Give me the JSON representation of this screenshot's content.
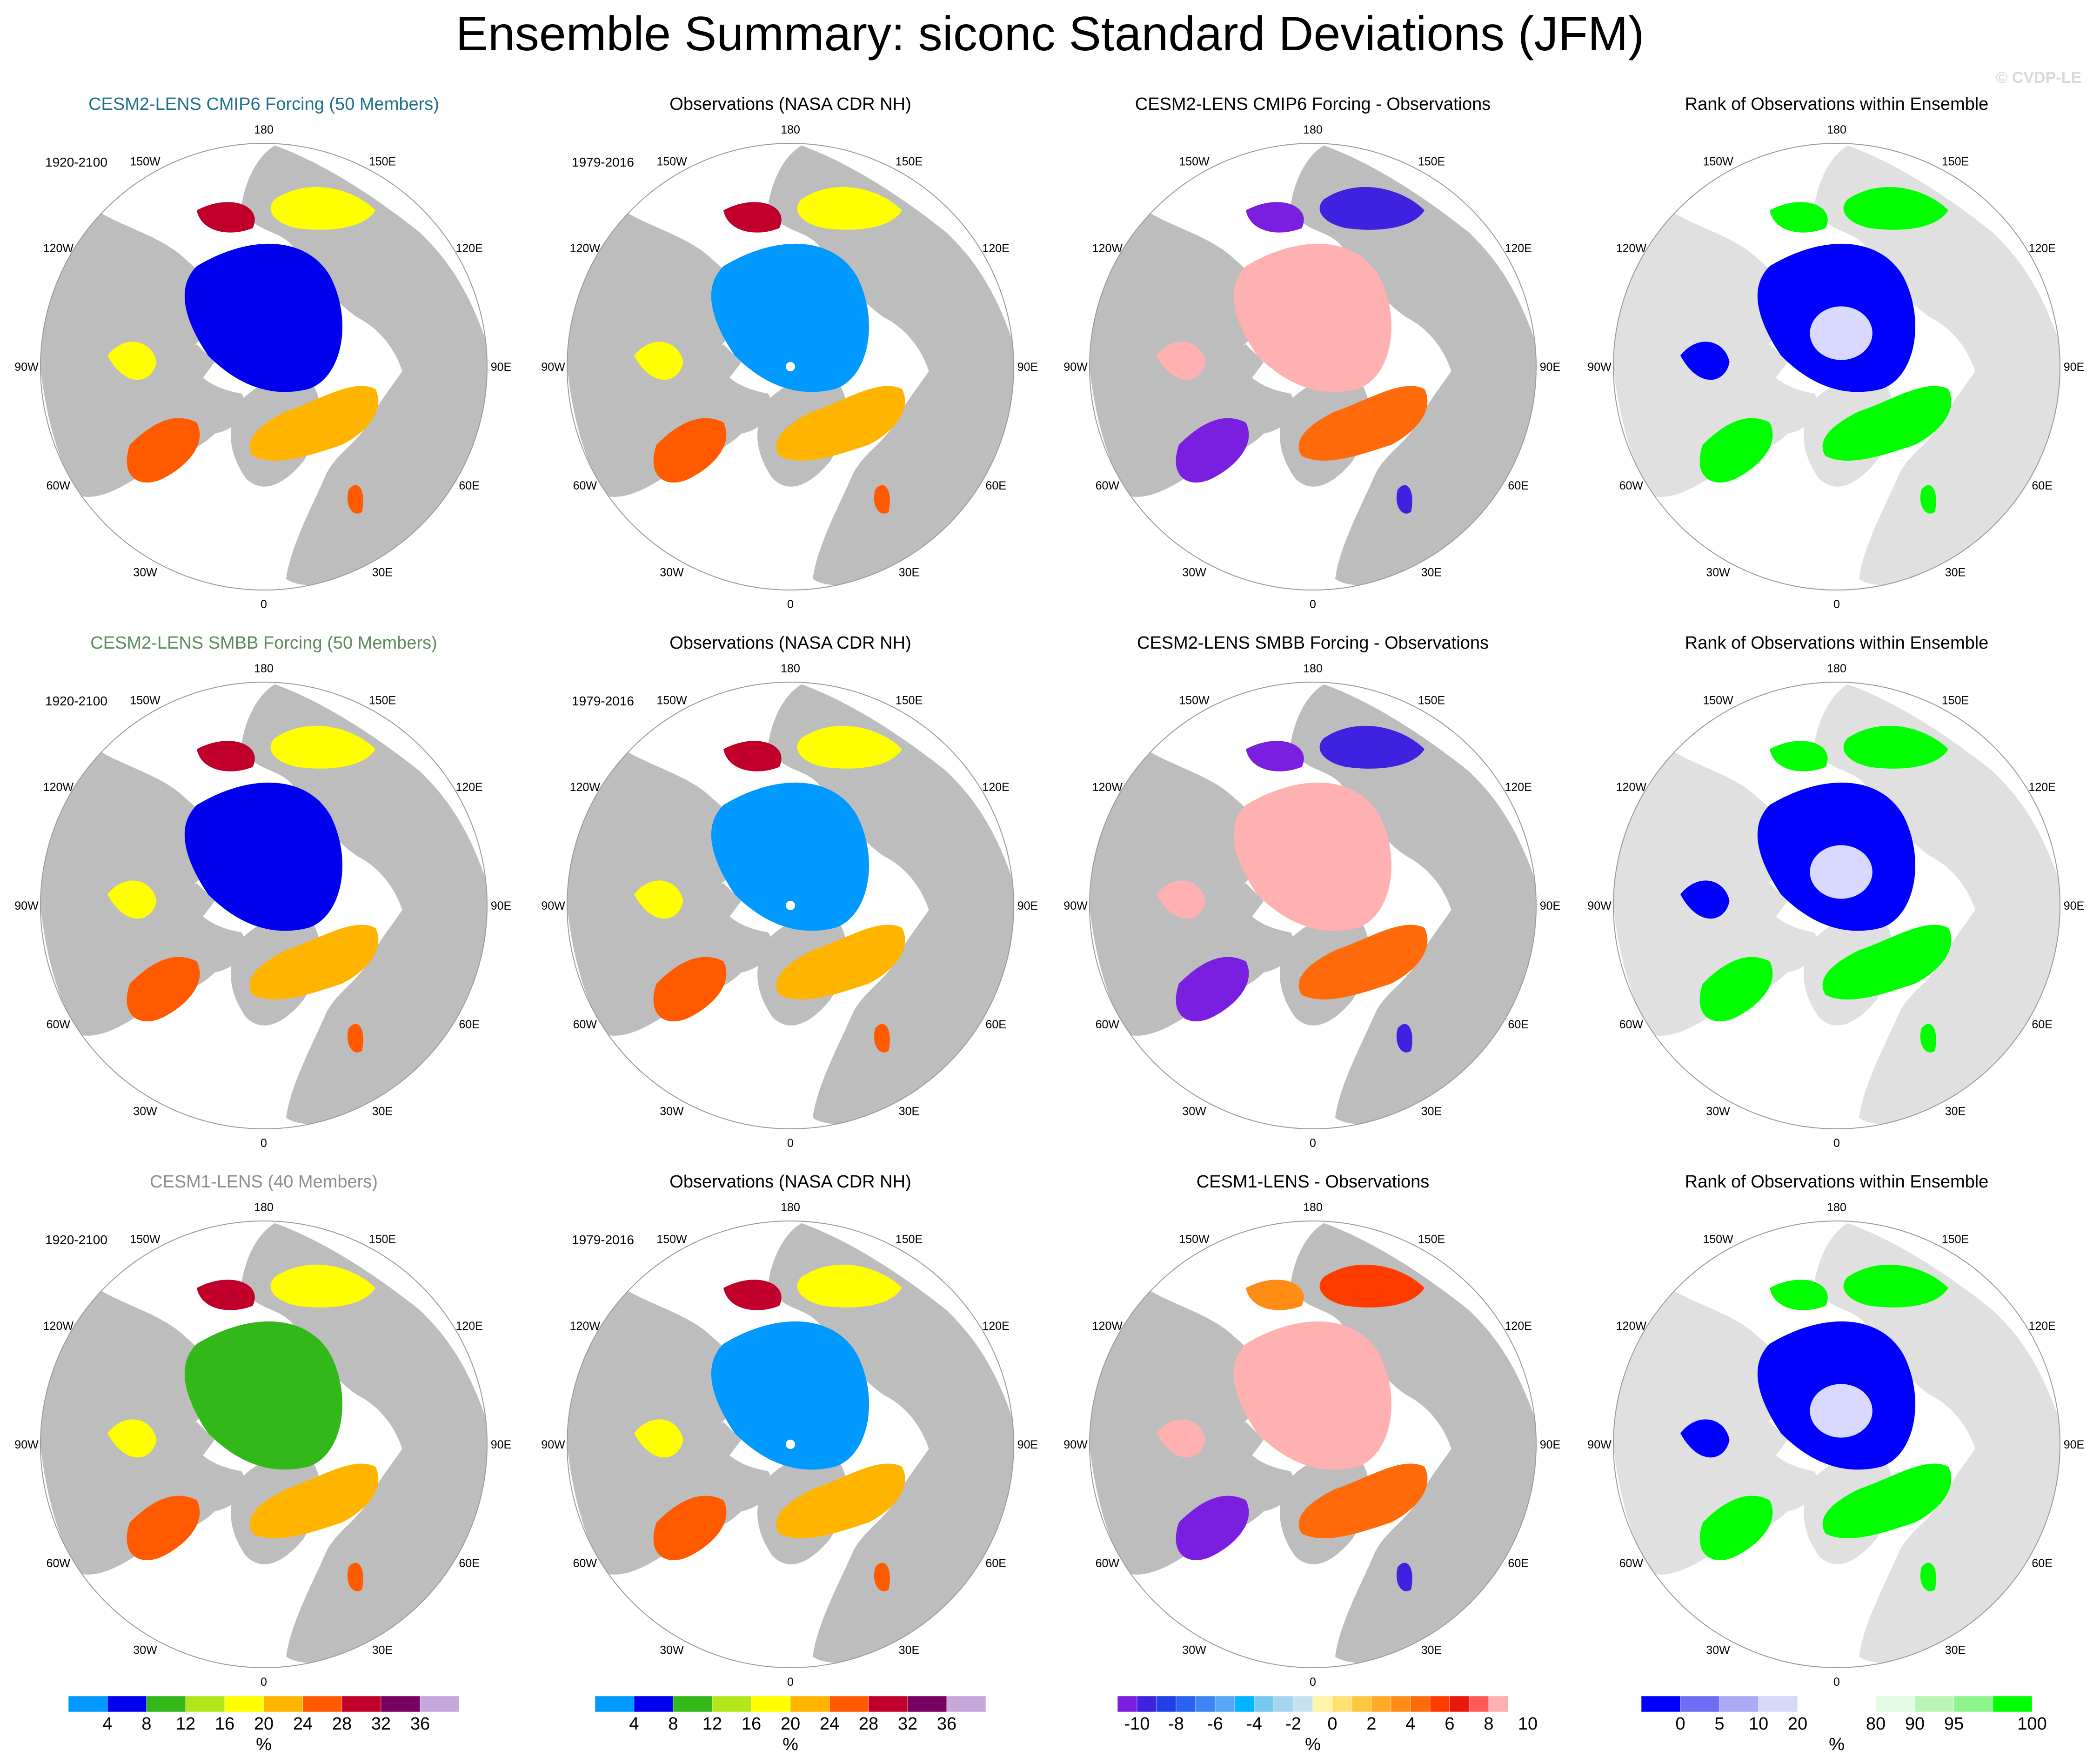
{
  "title": "Ensemble Summary: siconc Standard Deviations (JFM)",
  "watermark": "© CVDP-LE",
  "colors": {
    "ocean": "#ffffff",
    "land": "#bdbdbd",
    "land_light": "#e0e0e0",
    "title_cmip6": "#1f6f8b",
    "title_smbb": "#5b8a5b",
    "title_cesm1": "#8c8c8c",
    "black": "#000000"
  },
  "longitude_labels": [
    "180",
    "150E",
    "120E",
    "90E",
    "60E",
    "30E",
    "0",
    "30W",
    "60W",
    "90W",
    "120W",
    "150W"
  ],
  "chart_data": {
    "type": "heatmap",
    "variable": "siconc",
    "season": "JFM",
    "statistic": "Standard Deviations",
    "projection": "north-polar-stereographic",
    "rows": [
      {
        "panels": [
          {
            "title": "CESM2-LENS CMIP6 Forcing (50 Members)",
            "title_color": "#1f6f8b",
            "period": "1920-2100",
            "kind": "stddev",
            "variant": "cmip6"
          },
          {
            "title": "Observations (NASA CDR NH)",
            "title_color": "#000000",
            "period": "1979-2016",
            "kind": "obs",
            "variant": "obs"
          },
          {
            "title": "CESM2-LENS CMIP6 Forcing - Observations",
            "title_color": "#000000",
            "period": "",
            "kind": "diff",
            "variant": "cmip6"
          },
          {
            "title": "Rank of Observations within Ensemble",
            "title_color": "#000000",
            "period": "",
            "kind": "rank",
            "variant": "cmip6"
          }
        ]
      },
      {
        "panels": [
          {
            "title": "CESM2-LENS SMBB Forcing (50 Members)",
            "title_color": "#5b8a5b",
            "period": "1920-2100",
            "kind": "stddev",
            "variant": "smbb"
          },
          {
            "title": "Observations (NASA CDR NH)",
            "title_color": "#000000",
            "period": "1979-2016",
            "kind": "obs",
            "variant": "obs"
          },
          {
            "title": "CESM2-LENS SMBB Forcing - Observations",
            "title_color": "#000000",
            "period": "",
            "kind": "diff",
            "variant": "smbb"
          },
          {
            "title": "Rank of Observations within Ensemble",
            "title_color": "#000000",
            "period": "",
            "kind": "rank",
            "variant": "smbb"
          }
        ]
      },
      {
        "panels": [
          {
            "title": "CESM1-LENS (40 Members)",
            "title_color": "#8c8c8c",
            "period": "1920-2100",
            "kind": "stddev",
            "variant": "cesm1"
          },
          {
            "title": "Observations (NASA CDR NH)",
            "title_color": "#000000",
            "period": "1979-2016",
            "kind": "obs",
            "variant": "obs"
          },
          {
            "title": "CESM1-LENS - Observations",
            "title_color": "#000000",
            "period": "",
            "kind": "diff",
            "variant": "cesm1"
          },
          {
            "title": "Rank of Observations within Ensemble",
            "title_color": "#000000",
            "period": "",
            "kind": "rank",
            "variant": "cesm1"
          }
        ]
      }
    ],
    "colorbars": [
      {
        "name": "stddev",
        "units": "%",
        "colors": [
          "#0099ff",
          "#0000ee",
          "#33b81a",
          "#b3e61a",
          "#ffff00",
          "#ffb400",
          "#ff5a00",
          "#c0002a",
          "#780060",
          "#c8a8dc"
        ],
        "labels": [
          "4",
          "8",
          "12",
          "16",
          "20",
          "24",
          "28",
          "32",
          "36"
        ]
      },
      {
        "name": "stddev_obs",
        "units": "%",
        "colors": [
          "#0099ff",
          "#0000ee",
          "#33b81a",
          "#b3e61a",
          "#ffff00",
          "#ffb400",
          "#ff5a00",
          "#c0002a",
          "#780060",
          "#c8a8dc"
        ],
        "labels": [
          "4",
          "8",
          "12",
          "16",
          "20",
          "24",
          "28",
          "32",
          "36"
        ]
      },
      {
        "name": "difference",
        "units": "%",
        "colors": [
          "#7a1fe0",
          "#3f22e0",
          "#1f3fe8",
          "#2a62ee",
          "#3f85f2",
          "#57a7f6",
          "#00b4ff",
          "#78c8f0",
          "#a6d6ee",
          "#c6e2ee",
          "#fff4aa",
          "#ffe070",
          "#ffc640",
          "#ffaa28",
          "#ff8c14",
          "#ff6a0a",
          "#ff3c00",
          "#e8180a",
          "#ff5a5a",
          "#ffb0b0"
        ],
        "labels": [
          "-10",
          "-8",
          "-6",
          "-4",
          "-2",
          "0",
          "2",
          "4",
          "6",
          "8",
          "10"
        ]
      },
      {
        "name": "rank",
        "units": "%",
        "colors": [
          "#0000ff",
          "#6e6ef5",
          "#aaaaf5",
          "#d8d8fa",
          "#ffffff",
          "#ffffff",
          "#e3fae3",
          "#b9f5b9",
          "#8cf58c",
          "#00ff00"
        ],
        "labels": [
          "0",
          "5",
          "10",
          "20",
          "80",
          "90",
          "95",
          "100"
        ],
        "label_edges": [
          1,
          2,
          3,
          4,
          6,
          7,
          8,
          10
        ]
      }
    ]
  }
}
